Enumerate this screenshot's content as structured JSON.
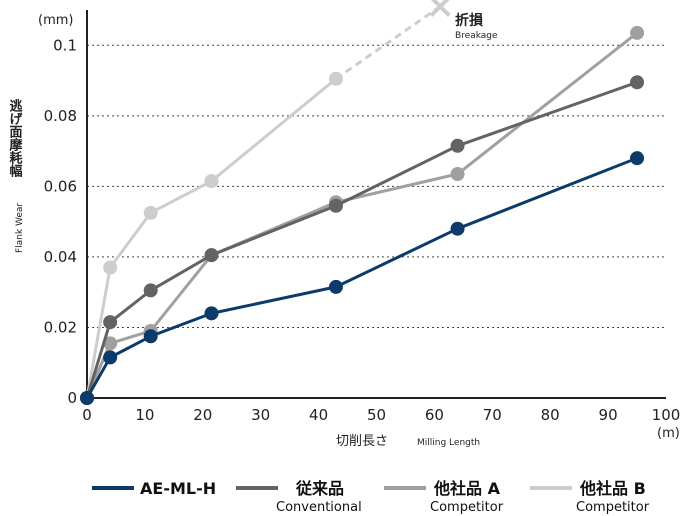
{
  "chart_data": {
    "type": "line",
    "y_unit": "(mm)",
    "x_unit": "(m)",
    "ylabel_ja": "逃げ面摩耗幅",
    "ylabel_en": "Flank Wear",
    "xlabel_ja": "切削長さ",
    "xlabel_en": "Milling Length",
    "xlim": [
      0,
      100
    ],
    "ylim": [
      0,
      0.11
    ],
    "x_ticks": [
      "0",
      "10",
      "20",
      "30",
      "40",
      "50",
      "60",
      "70",
      "80",
      "90",
      "100"
    ],
    "y_ticks": [
      "0",
      "0.02",
      "0.04",
      "0.06",
      "0.08",
      "0.1"
    ],
    "y_tick_values": [
      0,
      0.02,
      0.04,
      0.06,
      0.08,
      0.1
    ],
    "grid": "horizontal dotted",
    "legend_position": "bottom",
    "annotation": {
      "label": "折損",
      "sublabel": "Breakage",
      "icon": "x-mark-icon"
    },
    "series": [
      {
        "name": "AE-ML-H",
        "subname": "",
        "color": "#0b3a6b",
        "x": [
          0,
          4,
          11,
          21.5,
          43,
          64,
          95
        ],
        "y": [
          0,
          0.0115,
          0.0175,
          0.024,
          0.0315,
          0.048,
          0.068
        ]
      },
      {
        "name": "従来品",
        "subname": "Conventional",
        "color": "#636363",
        "x": [
          0,
          4,
          11,
          21.5,
          43,
          64,
          95
        ],
        "y": [
          0,
          0.0215,
          0.0305,
          0.0405,
          0.0545,
          0.0715,
          0.0895
        ]
      },
      {
        "name": "他社品 A",
        "subname": "Competitor",
        "color": "#a0a0a0",
        "x": [
          0,
          4,
          11,
          21.5,
          43,
          64,
          95
        ],
        "y": [
          0,
          0.0155,
          0.019,
          0.0405,
          0.0555,
          0.0635,
          0.1035
        ]
      },
      {
        "name": "他社品 B",
        "subname": "Competitor",
        "color": "#cdcdcd",
        "x": [
          0,
          4,
          11,
          21.5,
          43
        ],
        "y": [
          0,
          0.037,
          0.0525,
          0.0615,
          0.0905
        ],
        "breakage": {
          "x": 61,
          "y": 0.111
        }
      }
    ]
  }
}
